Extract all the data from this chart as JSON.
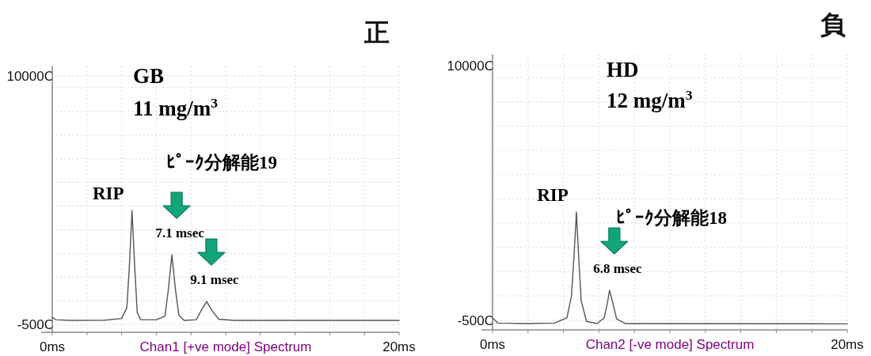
{
  "chart_data": [
    {
      "type": "line",
      "title": "正",
      "xlabel": "Chan1 [+ve mode] Spectrum",
      "xlim": [
        0,
        20
      ],
      "ylim": [
        -830,
        10400
      ],
      "xticks": [
        {
          "value": 0,
          "label": "0ms"
        },
        {
          "value": 2,
          "label": null
        },
        {
          "value": 4,
          "label": null
        },
        {
          "value": 6,
          "label": null
        },
        {
          "value": 8,
          "label": null
        },
        {
          "value": 10,
          "label": null
        },
        {
          "value": 12,
          "label": null
        },
        {
          "value": 14,
          "label": null
        },
        {
          "value": 16,
          "label": null
        },
        {
          "value": 18,
          "label": null
        },
        {
          "value": 20,
          "label": "20ms"
        }
      ],
      "yticks": [
        {
          "value": -500,
          "label": "-500C"
        },
        {
          "value": 500,
          "label": null
        },
        {
          "value": 1500,
          "label": null
        },
        {
          "value": 2500,
          "label": null
        },
        {
          "value": 3500,
          "label": null
        },
        {
          "value": 4500,
          "label": null
        },
        {
          "value": 5500,
          "label": null
        },
        {
          "value": 6500,
          "label": null
        },
        {
          "value": 7500,
          "label": null
        },
        {
          "value": 8500,
          "label": null
        },
        {
          "value": 9500,
          "label": null
        },
        {
          "value": 10000,
          "label": "10000C"
        }
      ],
      "grid": true,
      "color": "#555555",
      "x": [
        0,
        0.2,
        1,
        3,
        4.0,
        4.3,
        4.45,
        4.6,
        4.75,
        4.9,
        5.1,
        6.0,
        6.5,
        6.7,
        6.9,
        7.1,
        7.3,
        7.6,
        8.3,
        8.6,
        8.9,
        9.2,
        9.6,
        10.5,
        14,
        20
      ],
      "values": [
        -200,
        -300,
        -330,
        -320,
        -250,
        200,
        2000,
        4310,
        2000,
        0,
        -300,
        -300,
        -150,
        1000,
        2440,
        1000,
        -100,
        -330,
        -300,
        100,
        470,
        100,
        -280,
        -330,
        -330,
        -330
      ],
      "annotations": [
        "GB",
        "11 mg/m$^{3}$",
        "ﾋﾟｰｸ分解能19",
        {
          "text": "RIP",
          "x": 4.6,
          "y": 4310
        },
        {
          "text": "7.1 msec",
          "x": 6.9,
          "y": 2440
        },
        {
          "text": "9.1 msec",
          "x": 8.9,
          "y": 470
        }
      ]
    },
    {
      "type": "line",
      "title": "負",
      "xlabel": "Chan2 [-ve mode] Spectrum",
      "xlim": [
        0,
        20
      ],
      "ylim": [
        -900,
        10450
      ],
      "xticks": [
        {
          "value": 0,
          "label": "0ms"
        },
        {
          "value": 2,
          "label": null
        },
        {
          "value": 4,
          "label": null
        },
        {
          "value": 6,
          "label": null
        },
        {
          "value": 8,
          "label": null
        },
        {
          "value": 10,
          "label": null
        },
        {
          "value": 12,
          "label": null
        },
        {
          "value": 14,
          "label": null
        },
        {
          "value": 16,
          "label": null
        },
        {
          "value": 18,
          "label": null
        },
        {
          "value": 20,
          "label": "20ms"
        }
      ],
      "yticks": [
        {
          "value": -500,
          "label": "-500C"
        },
        {
          "value": 500,
          "label": null
        },
        {
          "value": 1500,
          "label": null
        },
        {
          "value": 2500,
          "label": null
        },
        {
          "value": 3500,
          "label": null
        },
        {
          "value": 4500,
          "label": null
        },
        {
          "value": 5500,
          "label": null
        },
        {
          "value": 6500,
          "label": null
        },
        {
          "value": 7500,
          "label": null
        },
        {
          "value": 8500,
          "label": null
        },
        {
          "value": 9500,
          "label": null
        },
        {
          "value": 10000,
          "label": "10000C"
        }
      ],
      "grid": true,
      "color": "#555555",
      "x": [
        0,
        0.3,
        2,
        3.5,
        4.2,
        4.45,
        4.6,
        4.73,
        4.85,
        5.0,
        5.3,
        5.9,
        6.3,
        6.5,
        6.6,
        6.75,
        7.0,
        7.5,
        20
      ],
      "values": [
        -400,
        -620,
        -640,
        -620,
        -400,
        500,
        2200,
        3960,
        2200,
        300,
        -550,
        -640,
        -400,
        300,
        730,
        300,
        -450,
        -640,
        -650
      ],
      "annotations": [
        "HD",
        "12 mg/m$^{3}$",
        "ﾋﾟｰｸ分解能18",
        {
          "text": "RIP",
          "x": 4.73,
          "y": 3960
        },
        {
          "text": "6.8 msec",
          "x": 6.6,
          "y": 730
        }
      ]
    }
  ]
}
